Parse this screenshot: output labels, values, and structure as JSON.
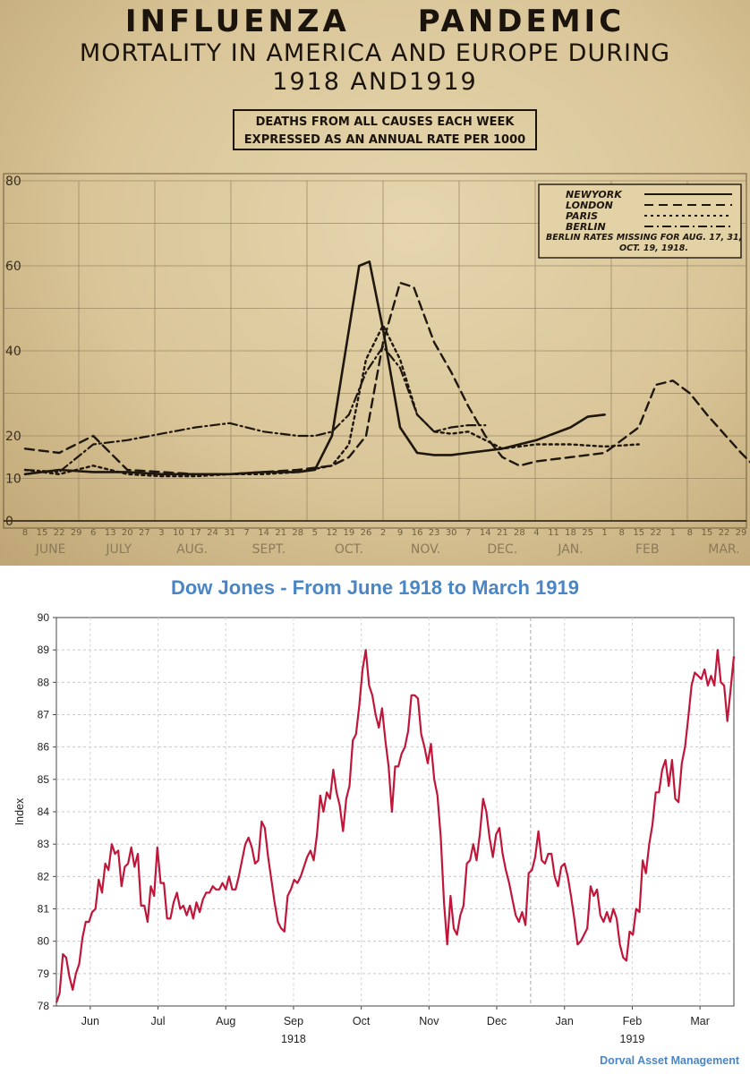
{
  "top_panel": {
    "title_line1": "INFLUENZA   PANDEMIC",
    "title_line2": "MORTALITY IN AMERICA AND EUROPE DURING",
    "title_line3": "1918 AND1919",
    "note_line1": "DEATHS FROM ALL CAUSES EACH WEEK",
    "note_line2": "EXPRESSED AS AN ANNUAL RATE PER 1000",
    "legend_footnote_line1": "BERLIN RATES MISSING FOR AUG. 17, 31,",
    "legend_footnote_line2": "OCT. 19, 1918."
  },
  "bottom_panel": {
    "title": "Dow Jones - From June 1918 to March 1919",
    "credit": "Dorval Asset Management"
  },
  "chart_data": [
    {
      "type": "line",
      "ylim": [
        0,
        80
      ],
      "yticks": [
        0,
        10,
        20,
        40,
        60,
        80
      ],
      "grid": true,
      "legend_position": "top-right",
      "week_labels": [
        "8",
        "15",
        "22",
        "29",
        "6",
        "13",
        "20",
        "27",
        "3",
        "10",
        "17",
        "24",
        "31",
        "7",
        "14",
        "21",
        "28",
        "5",
        "12",
        "19",
        "26",
        "2",
        "9",
        "16",
        "23",
        "30",
        "7",
        "14",
        "21",
        "28",
        "4",
        "11",
        "18",
        "25",
        "1",
        "8",
        "15",
        "22",
        "1",
        "8",
        "15",
        "22",
        "29"
      ],
      "month_labels": [
        "JUNE",
        "JULY",
        "AUG.",
        "SEPT.",
        "OCT.",
        "NOV.",
        "DEC.",
        "JAN.",
        "FEB",
        "MAR."
      ],
      "month_week_index": [
        1.5,
        5.5,
        9.8,
        14.3,
        19.0,
        23.5,
        28.0,
        32.0,
        36.5,
        41.0
      ],
      "series": [
        {
          "name": "NEWYORK",
          "dash": "solid",
          "stroke_width": 2.6,
          "x": [
            0,
            2,
            4,
            6,
            8,
            10,
            12,
            14,
            16,
            17,
            18,
            19,
            19.6,
            20.2,
            21,
            22,
            23,
            24,
            25,
            26,
            28,
            30,
            32,
            33,
            34
          ],
          "y": [
            11,
            12,
            11.5,
            11.5,
            11,
            11,
            11,
            11.5,
            11.5,
            12,
            20,
            45,
            60,
            61,
            45,
            22,
            16,
            15.5,
            15.5,
            16,
            17,
            19,
            22,
            24.5,
            25
          ]
        },
        {
          "name": "LONDON",
          "dash": "10,6",
          "stroke_width": 2.4,
          "x": [
            0,
            2,
            4,
            6,
            8,
            10,
            12,
            14,
            16,
            18,
            19,
            20,
            21,
            22,
            22.8,
            24,
            25,
            26,
            27,
            28,
            29,
            30,
            32,
            34,
            36,
            37,
            38,
            39,
            40,
            42,
            43
          ],
          "y": [
            17,
            16,
            20,
            12,
            11.5,
            11,
            11,
            11.5,
            12,
            13,
            15,
            20,
            42,
            56,
            55,
            42,
            35,
            27,
            20,
            15,
            13,
            14,
            15,
            16,
            22,
            32,
            33,
            30,
            25,
            16,
            12
          ]
        },
        {
          "name": "PARIS",
          "dash": "3,4",
          "stroke_width": 2.4,
          "x": [
            0,
            2,
            4,
            6,
            8,
            10,
            12,
            14,
            16,
            18,
            19,
            20,
            21,
            22,
            23,
            24,
            25,
            26,
            27,
            28,
            30,
            32,
            34,
            36
          ],
          "y": [
            12,
            11,
            13,
            11,
            10.5,
            10.5,
            11,
            11,
            11.5,
            13,
            18,
            38,
            46,
            38,
            25,
            21,
            20.5,
            21,
            19,
            17,
            18,
            18,
            17.5,
            18
          ]
        },
        {
          "name": "BERLIN",
          "dash": "10,4,2,4",
          "stroke_width": 2.2,
          "x": [
            0,
            2,
            4,
            6,
            8,
            10,
            12,
            14,
            16,
            17,
            18,
            19,
            20,
            21,
            22,
            23,
            24,
            25,
            26,
            27
          ],
          "y": [
            12,
            11.5,
            18,
            19,
            20.5,
            22,
            23,
            21,
            20,
            20,
            21,
            25,
            35,
            41,
            36,
            25,
            21,
            22,
            22.5,
            22.5
          ]
        }
      ]
    },
    {
      "type": "line",
      "ylabel": "Index",
      "ylim": [
        78,
        90
      ],
      "yticks": [
        78,
        79,
        80,
        81,
        82,
        83,
        84,
        85,
        86,
        87,
        88,
        89,
        90
      ],
      "xlim": [
        0,
        10
      ],
      "xticks": [
        "Jun",
        "Jul",
        "Aug",
        "Sep",
        "Oct",
        "Nov",
        "Dec",
        "Jan",
        "Feb",
        "Mar"
      ],
      "year_labels": [
        {
          "text": "1918",
          "at_month": 3.5
        },
        {
          "text": "1919",
          "at_month": 8.5
        }
      ],
      "grid": true,
      "color": "#c0163a",
      "series": [
        {
          "values": [
            78.1,
            78.4,
            79.6,
            79.5,
            78.9,
            78.5,
            79.0,
            79.3,
            80.1,
            80.6,
            80.6,
            80.9,
            81.0,
            81.9,
            81.5,
            82.4,
            82.2,
            83.0,
            82.7,
            82.8,
            81.7,
            82.3,
            82.4,
            82.9,
            82.3,
            82.7,
            81.1,
            81.1,
            80.6,
            81.7,
            81.4,
            82.9,
            81.8,
            81.8,
            80.7,
            80.7,
            81.2,
            81.5,
            81.0,
            81.1,
            80.8,
            81.1,
            80.7,
            81.2,
            80.9,
            81.3,
            81.5,
            81.5,
            81.7,
            81.6,
            81.6,
            81.8,
            81.6,
            82.0,
            81.6,
            81.6,
            82.0,
            82.5,
            83.0,
            83.2,
            82.9,
            82.4,
            82.5,
            83.7,
            83.5,
            82.6,
            81.9,
            81.2,
            80.6,
            80.4,
            80.3,
            81.4,
            81.6,
            81.9,
            81.8,
            82.0,
            82.3,
            82.6,
            82.8,
            82.5,
            83.3,
            84.5,
            84.0,
            84.6,
            84.4,
            85.3,
            84.6,
            84.2,
            83.4,
            84.4,
            84.8,
            86.2,
            86.4,
            87.3,
            88.4,
            89.0,
            87.9,
            87.6,
            87.0,
            86.6,
            87.2,
            86.2,
            85.4,
            84.0,
            85.4,
            85.4,
            85.8,
            86.0,
            86.5,
            87.6,
            87.6,
            87.5,
            86.4,
            86.0,
            85.5,
            86.1,
            85.0,
            84.5,
            83.2,
            81.2,
            79.9,
            81.4,
            80.4,
            80.2,
            80.8,
            81.1,
            82.4,
            82.5,
            83.0,
            82.5,
            83.3,
            84.4,
            84.0,
            83.2,
            82.6,
            83.3,
            83.5,
            82.7,
            82.2,
            81.8,
            81.3,
            80.8,
            80.6,
            80.9,
            80.5,
            82.1,
            82.2,
            82.6,
            83.4,
            82.5,
            82.4,
            82.7,
            82.7,
            82.0,
            81.7,
            82.3,
            82.4,
            82.0,
            81.4,
            80.7,
            79.9,
            80.0,
            80.2,
            80.4,
            81.7,
            81.4,
            81.6,
            80.8,
            80.6,
            80.9,
            80.6,
            81.0,
            80.7,
            79.9,
            79.5,
            79.4,
            80.3,
            80.2,
            81.0,
            80.9,
            82.5,
            82.1,
            83.0,
            83.6,
            84.6,
            84.6,
            85.3,
            85.6,
            84.8,
            85.6,
            84.4,
            84.3,
            85.5,
            86.0,
            86.9,
            87.9,
            88.3,
            88.2,
            88.1,
            88.4,
            87.9,
            88.2,
            87.9,
            89.0,
            88.0,
            87.9,
            86.8,
            87.8,
            88.8
          ]
        }
      ]
    }
  ]
}
